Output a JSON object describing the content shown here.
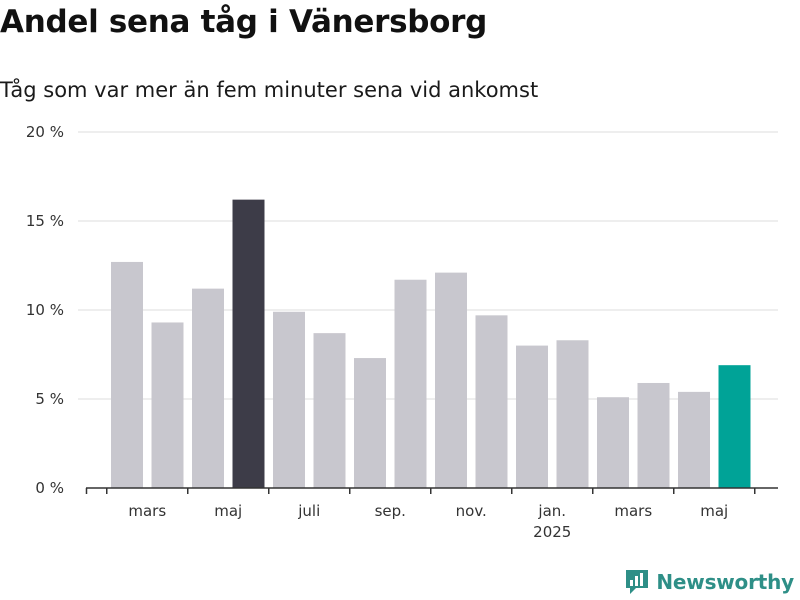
{
  "header": {
    "title": "Andel sena tåg i Vänersborg",
    "subtitle": "Tåg som var mer än fem minuter sena vid ankomst"
  },
  "brand": {
    "name": "Newsworthy",
    "icon": "newsworthy-logo-icon",
    "color": "#2e8f87"
  },
  "colors": {
    "default_bar": "#c8c7ce",
    "highlight_max": "#3d3c48",
    "highlight_latest": "#00a397",
    "grid": "#dddddd",
    "axis": "#333333"
  },
  "chart_data": {
    "type": "bar",
    "title": "Andel sena tåg i Vänersborg",
    "subtitle": "Tåg som var mer än fem minuter sena vid ankomst",
    "xlabel": "",
    "ylabel": "",
    "ylim": [
      0,
      20
    ],
    "y_ticks": [
      0,
      5,
      10,
      15,
      20
    ],
    "y_tick_labels": [
      "0 %",
      "5 %",
      "10 %",
      "15 %",
      "20 %"
    ],
    "grid": true,
    "categories": [
      "2024-02",
      "2024-03",
      "2024-04",
      "2024-05",
      "2024-06",
      "2024-07",
      "2024-08",
      "2024-09",
      "2024-10",
      "2024-11",
      "2024-12",
      "2025-01",
      "2025-02",
      "2025-03",
      "2025-04",
      "2025-05"
    ],
    "values": [
      12.7,
      9.3,
      11.2,
      16.2,
      9.9,
      8.7,
      7.3,
      11.7,
      12.1,
      9.7,
      8.0,
      8.3,
      5.1,
      5.9,
      5.4,
      6.9
    ],
    "highlight": {
      "2024-05": "max",
      "2025-05": "latest"
    },
    "x_tick_labels": [
      {
        "category": "2024-03",
        "label": "mars"
      },
      {
        "category": "2024-05",
        "label": "maj"
      },
      {
        "category": "2024-07",
        "label": "juli"
      },
      {
        "category": "2024-09",
        "label": "sep."
      },
      {
        "category": "2024-11",
        "label": "nov."
      },
      {
        "category": "2025-01",
        "label": "jan.",
        "sublabel": "2025"
      },
      {
        "category": "2025-03",
        "label": "mars"
      },
      {
        "category": "2025-05",
        "label": "maj"
      }
    ]
  }
}
